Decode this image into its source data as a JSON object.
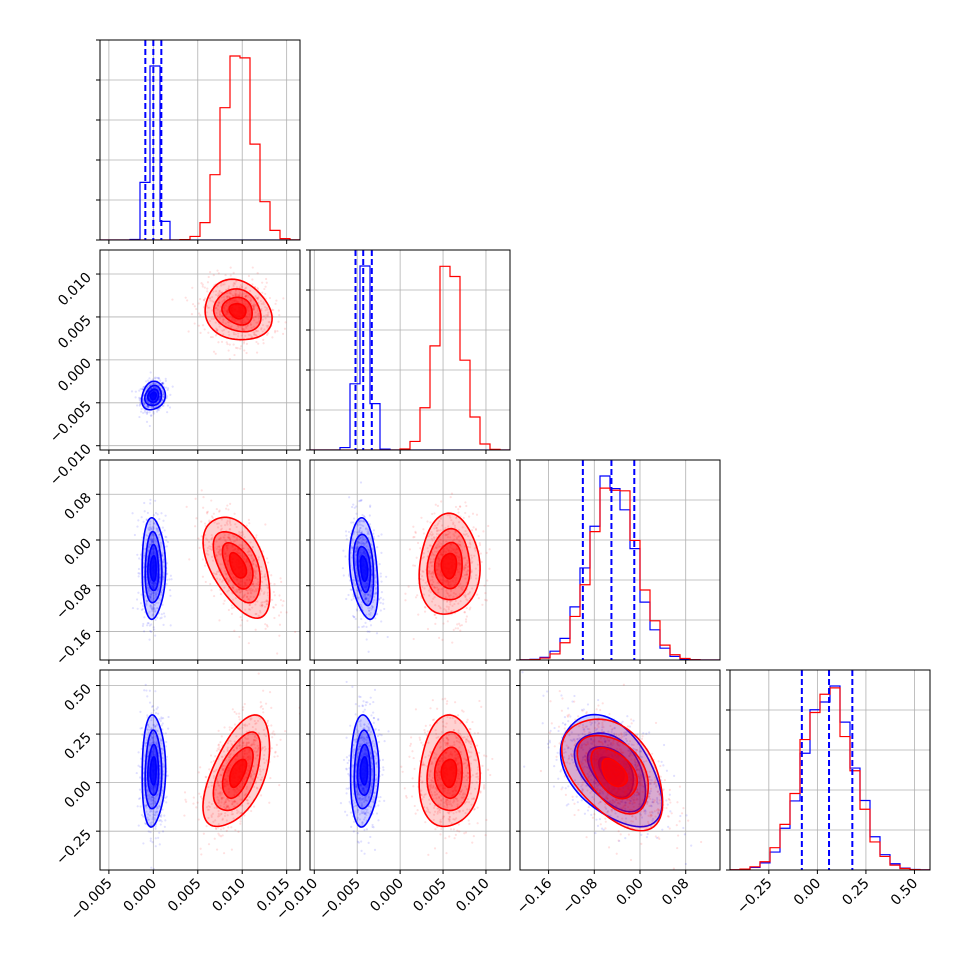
{
  "chart_data": {
    "type": "corner",
    "grid": true,
    "colors": {
      "series_a": "#0000ff",
      "series_b": "#ff0000",
      "grid": "#b0b0b0",
      "axes": "#000000"
    },
    "series": [
      {
        "color": "#0000ff",
        "mean": [
          0.0,
          -0.0042,
          -0.05,
          0.06
        ],
        "sd": [
          0.0006,
          0.00075,
          0.04,
          0.13
        ],
        "quantiles": [
          [
            -0.0009,
            0.0,
            0.0009
          ],
          [
            -0.0052,
            -0.0043,
            -0.0033
          ],
          [
            -0.1,
            -0.05,
            -0.01
          ],
          [
            -0.08,
            0.06,
            0.18
          ]
        ],
        "contour_corr": [
          [
            0,
            0,
            0,
            0
          ],
          [
            0.15,
            0,
            0,
            0
          ],
          [
            0,
            -0.3,
            0,
            0
          ],
          [
            0.05,
            0.05,
            -0.45,
            0
          ]
        ]
      },
      {
        "color": "#ff0000",
        "mean": [
          0.0095,
          0.0057,
          -0.045,
          0.05
        ],
        "sd": [
          0.0017,
          0.0016,
          0.04,
          0.13
        ],
        "contour_corr": [
          [
            0,
            0,
            0,
            0
          ],
          [
            -0.15,
            0,
            0,
            0
          ],
          [
            -0.5,
            0.05,
            0,
            0
          ],
          [
            0.55,
            0.05,
            -0.45,
            0
          ]
        ]
      }
    ],
    "parameter_ranges": [
      [
        -0.006,
        0.0165
      ],
      [
        -0.0105,
        0.0128
      ],
      [
        -0.21,
        0.14
      ],
      [
        -0.45,
        0.58
      ]
    ],
    "axis_ticks": [
      {
        "values": [
          -0.005,
          0.0,
          0.005,
          0.01,
          0.015
        ],
        "labels": [
          "−0.005",
          "0.000",
          "0.005",
          "0.010",
          "0.015"
        ]
      },
      {
        "values": [
          -0.01,
          -0.005,
          0.0,
          0.005,
          0.01
        ],
        "labels": [
          "−0.010",
          "−0.005",
          "0.000",
          "0.005",
          "0.010"
        ]
      },
      {
        "values": [
          -0.16,
          -0.08,
          0.0,
          0.08
        ],
        "labels": [
          "−0.16",
          "−0.08",
          "0.00",
          "0.08"
        ]
      },
      {
        "values": [
          -0.25,
          0.0,
          0.25,
          0.5
        ],
        "labels": [
          "−0.25",
          "0.00",
          "0.25",
          "0.50"
        ]
      }
    ],
    "histogram_bins": 20,
    "xlabel": "",
    "ylabel": ""
  }
}
